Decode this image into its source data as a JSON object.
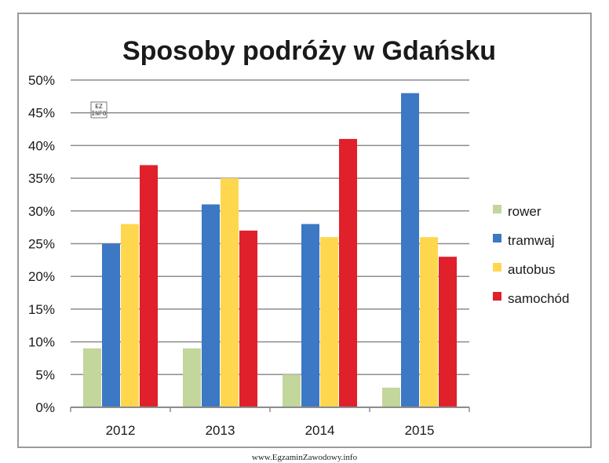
{
  "chart_data": {
    "type": "bar",
    "title": "Sposoby podróży w Gdańsku",
    "categories": [
      "2012",
      "2013",
      "2014",
      "2015"
    ],
    "ylim": [
      0,
      50
    ],
    "y_ticks": [
      "0%",
      "5%",
      "10%",
      "15%",
      "20%",
      "25%",
      "30%",
      "35%",
      "40%",
      "45%",
      "50%"
    ],
    "grid": true,
    "legend_position": "right",
    "series": [
      {
        "name": "rower",
        "color": "#c3d69b",
        "values": [
          9,
          9,
          5,
          3
        ]
      },
      {
        "name": "tramwaj",
        "color": "#3c78c3",
        "values": [
          25,
          31,
          28,
          48
        ]
      },
      {
        "name": "autobus",
        "color": "#ffd74f",
        "values": [
          28,
          35,
          26,
          26
        ]
      },
      {
        "name": "samochód",
        "color": "#e0202a",
        "values": [
          37,
          27,
          41,
          23
        ]
      }
    ]
  },
  "watermark": "EZ INFO",
  "footer": "www.EgzaminZawodowy.info"
}
